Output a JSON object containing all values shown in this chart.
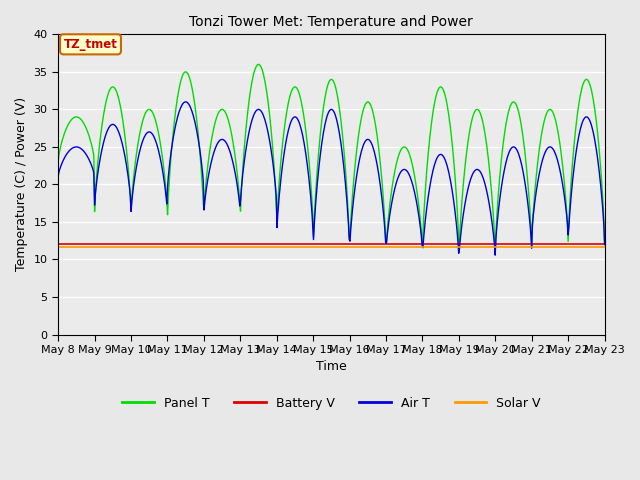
{
  "title": "Tonzi Tower Met: Temperature and Power",
  "xlabel": "Time",
  "ylabel": "Temperature (C) / Power (V)",
  "ylim": [
    0,
    40
  ],
  "yticks": [
    0,
    5,
    10,
    15,
    20,
    25,
    30,
    35,
    40
  ],
  "bg_color": "#e8e8e8",
  "plot_bg_color": "#ebebeb",
  "annotation_text": "TZ_tmet",
  "annotation_bg": "#ffffcc",
  "annotation_border": "#cc6600",
  "annotation_text_color": "#cc0000",
  "panel_t_color": "#00dd00",
  "battery_v_color": "#dd0000",
  "air_t_color": "#0000dd",
  "solar_v_color": "#ff9900",
  "battery_v_val": 12.0,
  "solar_v_val": 11.6,
  "n_days": 15,
  "panel_t_daily_peaks": [
    29,
    33,
    30,
    35,
    30,
    36,
    33,
    34,
    31,
    25,
    33,
    30,
    31,
    30,
    34
  ],
  "panel_t_daily_mins": [
    23,
    16,
    16,
    15,
    16,
    15,
    14,
    11,
    11,
    11,
    11,
    10,
    11,
    12,
    12
  ],
  "air_t_daily_peaks": [
    25,
    28,
    27,
    31,
    26,
    30,
    29,
    30,
    26,
    22,
    24,
    22,
    25,
    25,
    29
  ],
  "air_t_daily_mins": [
    21,
    17,
    16,
    19,
    16,
    17,
    13,
    11,
    11,
    11,
    10,
    10,
    11,
    13,
    12
  ],
  "figsize": [
    6.4,
    4.8
  ],
  "dpi": 100
}
